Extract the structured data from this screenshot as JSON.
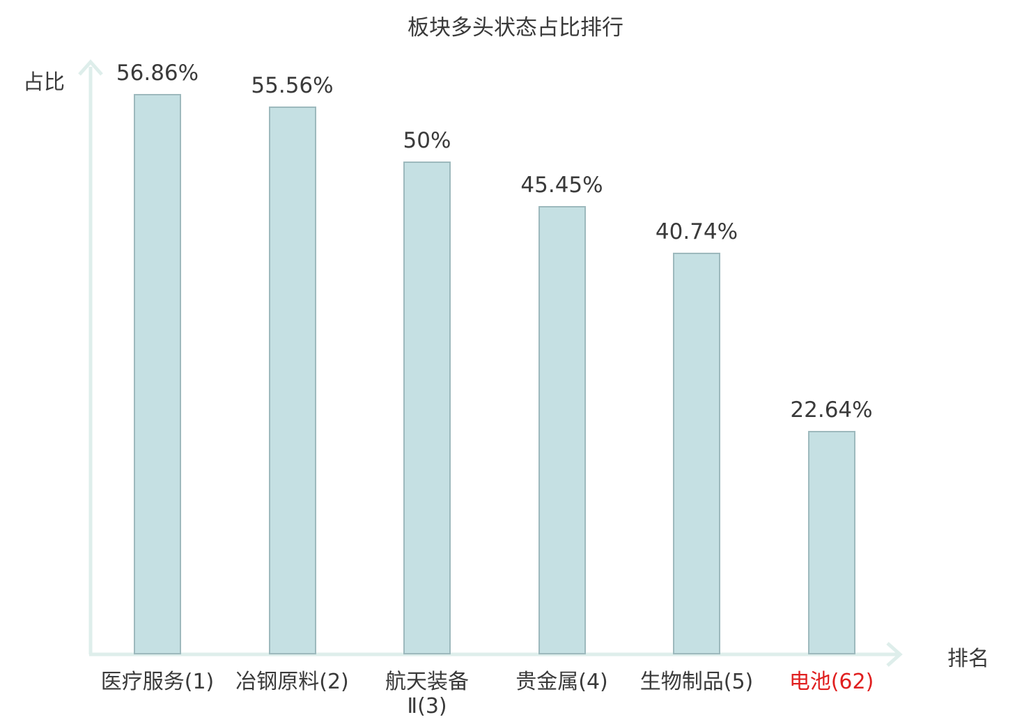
{
  "title": "板块多头状态占比排行",
  "axes": {
    "y_label": "占比",
    "x_label": "排名"
  },
  "colors": {
    "bar_fill": "#c5e0e3",
    "bar_border": "#9db9bd",
    "axis": "#deeeeb",
    "text": "#3a3a3a",
    "highlight": "#e01f1f"
  },
  "chart_data": {
    "type": "bar",
    "title": "板块多头状态占比排行",
    "xlabel": "排名",
    "ylabel": "占比",
    "categories": [
      "医疗服务(1)",
      "冶钢原料(2)",
      "航天装备\nⅡ(3)",
      "贵金属(4)",
      "生物制品(5)",
      "电池(62)"
    ],
    "values": [
      56.86,
      55.56,
      50,
      45.45,
      40.74,
      22.64
    ],
    "value_labels": [
      "56.86%",
      "55.56%",
      "50%",
      "45.45%",
      "40.74%",
      "22.64%"
    ],
    "highlight_index": 5,
    "ylim": [
      0,
      60
    ],
    "grid": false,
    "legend": null
  }
}
